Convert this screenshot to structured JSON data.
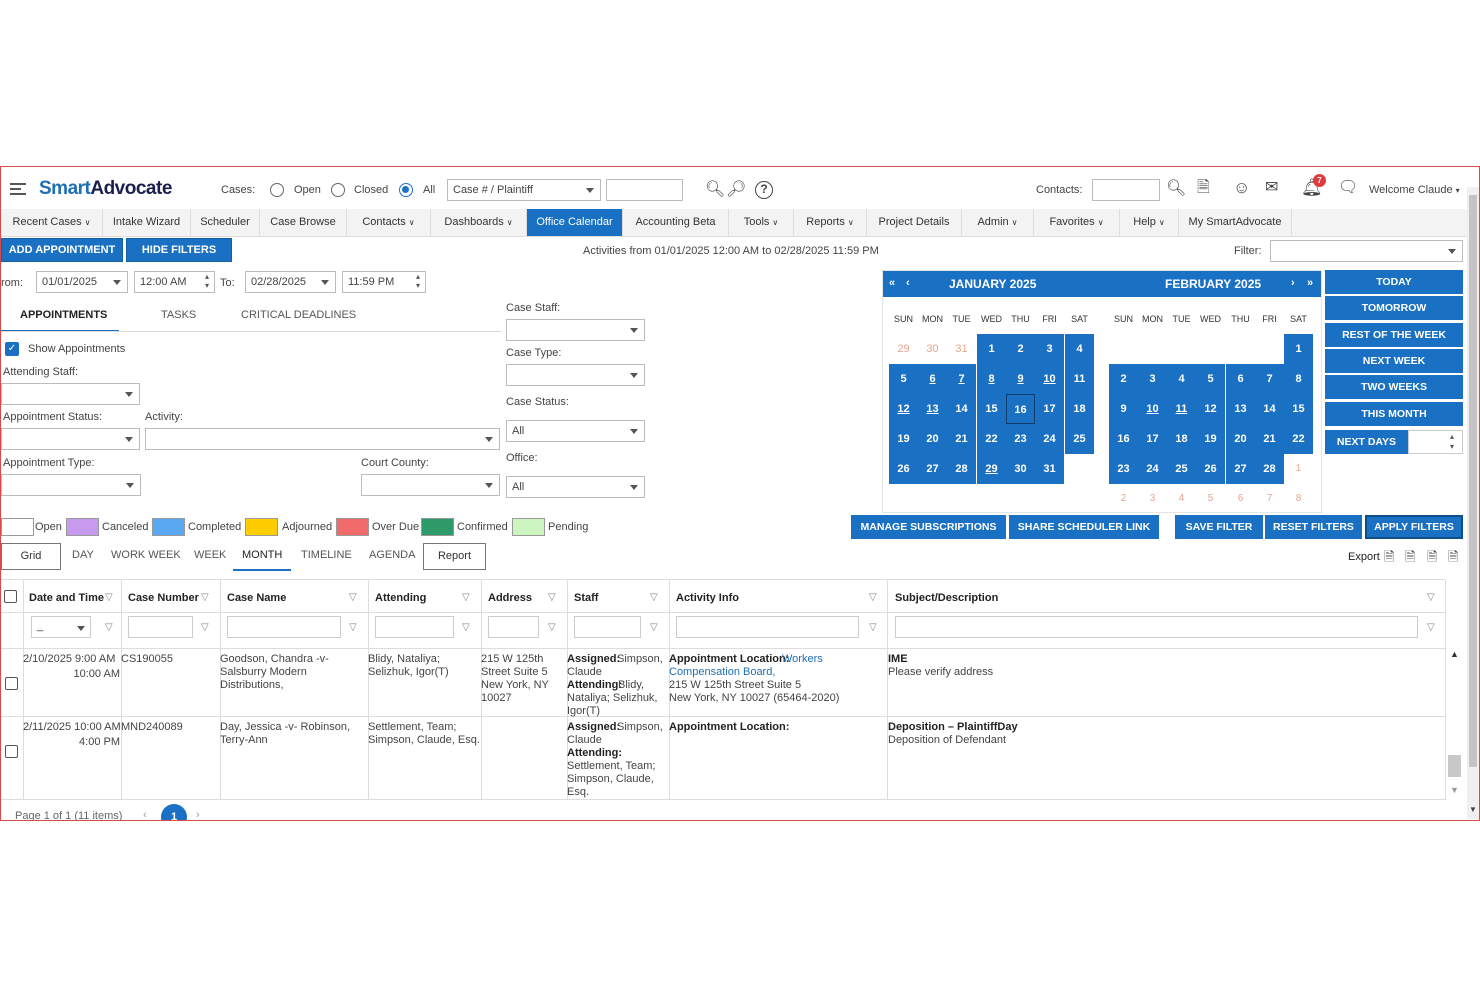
{
  "brand": {
    "smart": "Smart",
    "advocate": "Advocate"
  },
  "topbar": {
    "cases_label": "Cases:",
    "open_label": "Open",
    "closed_label": "Closed",
    "all_label": "All",
    "case_select": "Case # / Plaintiff",
    "contacts_label": "Contacts:",
    "notifications_count": "7",
    "welcome": "Welcome Claude"
  },
  "nav": [
    "Recent Cases",
    "Intake Wizard",
    "Scheduler",
    "Case Browse",
    "Contacts",
    "Dashboards",
    "Office Calendar",
    "Accounting Beta",
    "Tools",
    "Reports",
    "Project Details",
    "Admin",
    "Favorites",
    "Help",
    "My SmartAdvocate"
  ],
  "toolbar": {
    "add_appointment": "ADD APPOINTMENT",
    "hide_filters": "HIDE FILTERS",
    "activities_range": "Activities from 01/01/2025 12:00 AM to 02/28/2025 11:59 PM",
    "filter_label": "Filter:"
  },
  "filters": {
    "from_label": "rom:",
    "from_date": "01/01/2025",
    "from_time": "12:00 AM",
    "to_label": "To:",
    "to_date": "02/28/2025",
    "to_time": "11:59 PM",
    "tabs": [
      "APPOINTMENTS",
      "TASKS",
      "CRITICAL DEADLINES"
    ],
    "show_appointments": "Show Appointments",
    "attending_staff": "Attending Staff:",
    "appointment_status": "Appointment Status:",
    "activity": "Activity:",
    "appointment_type": "Appointment Type:",
    "court_county": "Court County:",
    "case_staff": "Case Staff:",
    "case_type": "Case Type:",
    "case_status": "Case Status:",
    "case_status_value": "All",
    "office": "Office:",
    "office_value": "All"
  },
  "calendar": {
    "month1": "JANUARY 2025",
    "month2": "FEBRUARY 2025",
    "dow": [
      "SUN",
      "MON",
      "TUE",
      "WED",
      "THU",
      "FRI",
      "SAT"
    ],
    "jan": [
      [
        "29",
        "30",
        "31",
        "1",
        "2",
        "3",
        "4"
      ],
      [
        "5",
        "6",
        "7",
        "8",
        "9",
        "10",
        "11"
      ],
      [
        "12",
        "13",
        "14",
        "15",
        "16",
        "17",
        "18"
      ],
      [
        "19",
        "20",
        "21",
        "22",
        "23",
        "24",
        "25"
      ],
      [
        "26",
        "27",
        "28",
        "29",
        "30",
        "31",
        ""
      ]
    ],
    "feb": [
      [
        "",
        "",
        "",
        "",
        "",
        "",
        "1"
      ],
      [
        "2",
        "3",
        "4",
        "5",
        "6",
        "7",
        "8"
      ],
      [
        "9",
        "10",
        "11",
        "12",
        "13",
        "14",
        "15"
      ],
      [
        "16",
        "17",
        "18",
        "19",
        "20",
        "21",
        "22"
      ],
      [
        "23",
        "24",
        "25",
        "26",
        "27",
        "28",
        "1"
      ],
      [
        "2",
        "3",
        "4",
        "5",
        "6",
        "7",
        "8"
      ]
    ]
  },
  "quick": [
    "TODAY",
    "TOMORROW",
    "REST OF THE WEEK",
    "NEXT WEEK",
    "TWO WEEKS",
    "THIS MONTH",
    "NEXT DAYS"
  ],
  "legend": [
    "Open",
    "Canceled",
    "Completed",
    "Adjourned",
    "Over Due",
    "Confirmed",
    "Pending"
  ],
  "legend_colors": [
    "#ffffff",
    "#c79af0",
    "#5aa8f0",
    "#ffcc00",
    "#f26b6b",
    "#2e9a6a",
    "#ccf5c0"
  ],
  "actions": [
    "MANAGE SUBSCRIPTIONS",
    "SHARE SCHEDULER LINK",
    "SAVE FILTER",
    "RESET FILTERS",
    "APPLY FILTERS"
  ],
  "views": [
    "Grid",
    "DAY",
    "WORK WEEK",
    "WEEK",
    "MONTH",
    "TIMELINE",
    "AGENDA",
    "Report"
  ],
  "export_label": "Export",
  "grid": {
    "headers": [
      "Date and Time",
      "Case Number",
      "Case Name",
      "Attending",
      "Address",
      "Staff",
      "Activity Info",
      "Subject/Description"
    ],
    "date_filter": "_",
    "rows": [
      {
        "date": "2/10/2025 9:00 AM",
        "time_end": "10:00 AM",
        "case_number": "CS190055",
        "case_name": [
          "Goodson, Chandra -v-",
          "Salsburry Modern",
          "Distributions,"
        ],
        "attending": [
          "Blidy, Nataliya;",
          "Selizhuk, Igor(T)"
        ],
        "address": [
          "215 W 125th",
          "Street Suite 5",
          "New York, NY",
          "10027"
        ],
        "staff_assigned_label": "Assigned:",
        "staff_assigned": "Simpson,",
        "staff_assigned2": "Claude",
        "staff_attending_label": "Attending:",
        "staff_attending": "Blidy,",
        "staff_attending_rest": [
          "Nataliya; Selizhuk,",
          "Igor(T)"
        ],
        "activity_label": "Appointment Location:",
        "activity_link1": "Workers",
        "activity_link2": "Compensation Board,",
        "activity_lines": [
          "215 W 125th Street Suite 5",
          "New York, NY 10027 (65464-2020)"
        ],
        "subject": "IME",
        "description": "Please verify address"
      },
      {
        "date": "2/11/2025 10:00 AM",
        "time_end": "4:00 PM",
        "case_number": "MND240089",
        "case_name": [
          "Day, Jessica -v- Robinson,",
          "Terry-Ann"
        ],
        "attending": [
          "Settlement, Team;",
          "Simpson, Claude, Esq."
        ],
        "staff_assigned_label": "Assigned:",
        "staff_assigned": "Simpson,",
        "staff_assigned2": "Claude",
        "staff_attending_label": "Attending:",
        "staff_attending_rest": [
          "Settlement, Team;",
          "Simpson, Claude,",
          "Esq."
        ],
        "activity_label": "Appointment Location:",
        "subject": "Deposition – PlaintiffDay",
        "description": "Deposition of Defendant"
      }
    ]
  },
  "pager": {
    "text": "Page 1 of 1 (11 items)",
    "current": "1"
  }
}
